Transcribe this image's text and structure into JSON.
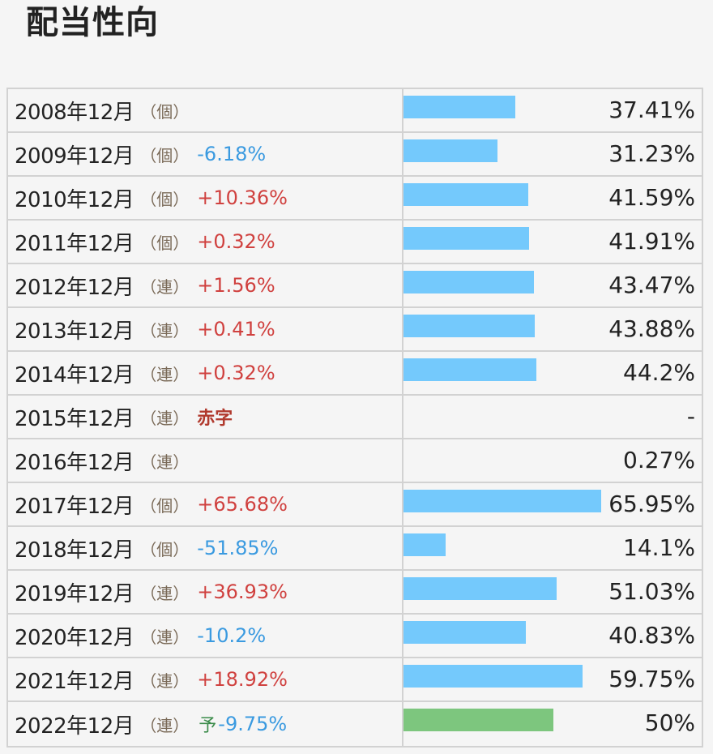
{
  "title": "配当性向",
  "colors": {
    "bar": "#74c9fc",
    "forecast_bar": "#7dc67e",
    "up": "#d0413f",
    "down": "#3a9ae0",
    "deficit": "#b13a2e"
  },
  "chart_data": {
    "type": "bar",
    "title": "配当性向",
    "categories": [
      "2008年12月",
      "2009年12月",
      "2010年12月",
      "2011年12月",
      "2012年12月",
      "2013年12月",
      "2014年12月",
      "2015年12月",
      "2016年12月",
      "2017年12月",
      "2018年12月",
      "2019年12月",
      "2020年12月",
      "2021年12月",
      "2022年12月"
    ],
    "values": [
      37.41,
      31.23,
      41.59,
      41.91,
      43.47,
      43.88,
      44.2,
      null,
      0.27,
      65.95,
      14.1,
      51.03,
      40.83,
      59.75,
      50
    ],
    "xlim": [
      0,
      65.95
    ]
  },
  "rows": [
    {
      "period": "2008年12月",
      "type": "（個）",
      "change": "",
      "dir": "",
      "note": "",
      "forecast": "",
      "value": "37.41%",
      "pct": 37.41
    },
    {
      "period": "2009年12月",
      "type": "（個）",
      "change": "-6.18%",
      "dir": "down",
      "note": "",
      "forecast": "",
      "value": "31.23%",
      "pct": 31.23
    },
    {
      "period": "2010年12月",
      "type": "（個）",
      "change": "+10.36%",
      "dir": "up",
      "note": "",
      "forecast": "",
      "value": "41.59%",
      "pct": 41.59
    },
    {
      "period": "2011年12月",
      "type": "（個）",
      "change": "+0.32%",
      "dir": "up",
      "note": "",
      "forecast": "",
      "value": "41.91%",
      "pct": 41.91
    },
    {
      "period": "2012年12月",
      "type": "（連）",
      "change": "+1.56%",
      "dir": "up",
      "note": "",
      "forecast": "",
      "value": "43.47%",
      "pct": 43.47
    },
    {
      "period": "2013年12月",
      "type": "（連）",
      "change": "+0.41%",
      "dir": "up",
      "note": "",
      "forecast": "",
      "value": "43.88%",
      "pct": 43.88
    },
    {
      "period": "2014年12月",
      "type": "（連）",
      "change": "+0.32%",
      "dir": "up",
      "note": "",
      "forecast": "",
      "value": "44.2%",
      "pct": 44.2
    },
    {
      "period": "2015年12月",
      "type": "（連）",
      "change": "",
      "dir": "",
      "note": "赤字",
      "forecast": "",
      "value": "-",
      "pct": 0
    },
    {
      "period": "2016年12月",
      "type": "（連）",
      "change": "",
      "dir": "",
      "note": "",
      "forecast": "",
      "value": "0.27%",
      "pct": 0.27
    },
    {
      "period": "2017年12月",
      "type": "（個）",
      "change": "+65.68%",
      "dir": "up",
      "note": "",
      "forecast": "",
      "value": "65.95%",
      "pct": 65.95
    },
    {
      "period": "2018年12月",
      "type": "（個）",
      "change": "-51.85%",
      "dir": "down",
      "note": "",
      "forecast": "",
      "value": "14.1%",
      "pct": 14.1
    },
    {
      "period": "2019年12月",
      "type": "（連）",
      "change": "+36.93%",
      "dir": "up",
      "note": "",
      "forecast": "",
      "value": "51.03%",
      "pct": 51.03
    },
    {
      "period": "2020年12月",
      "type": "（連）",
      "change": "-10.2%",
      "dir": "down",
      "note": "",
      "forecast": "",
      "value": "40.83%",
      "pct": 40.83
    },
    {
      "period": "2021年12月",
      "type": "（連）",
      "change": "+18.92%",
      "dir": "up",
      "note": "",
      "forecast": "",
      "value": "59.75%",
      "pct": 59.75
    },
    {
      "period": "2022年12月",
      "type": "（連）",
      "change": "-9.75%",
      "dir": "down",
      "note": "",
      "forecast": "予",
      "value": "50%",
      "pct": 50
    }
  ]
}
